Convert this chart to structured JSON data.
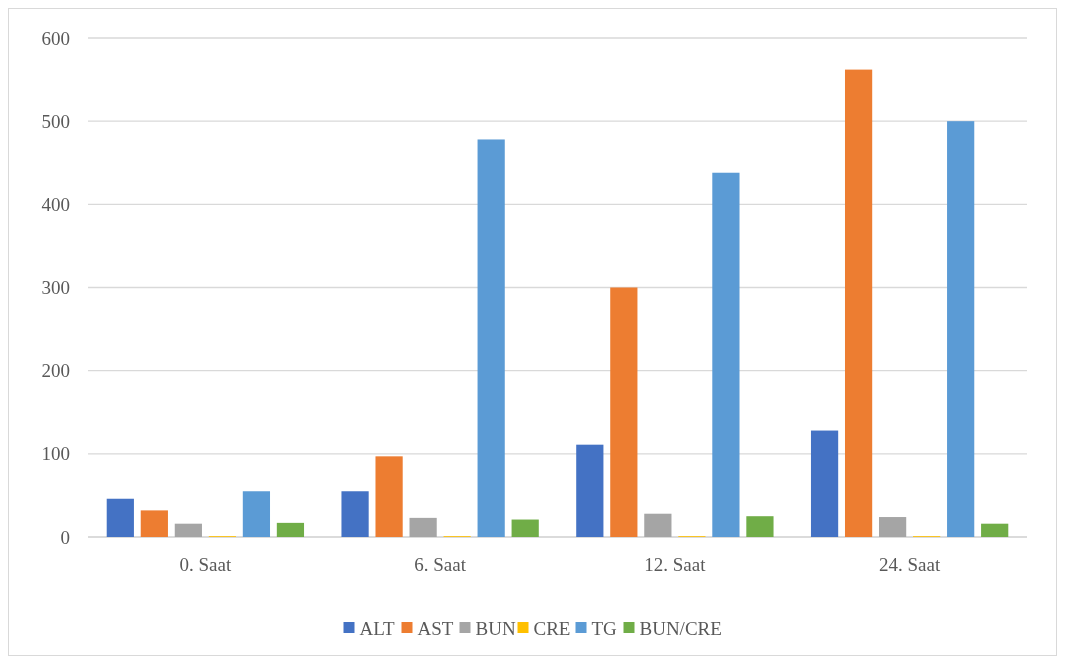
{
  "chart_data": {
    "type": "bar",
    "categories": [
      "0. Saat",
      "6. Saat",
      "12. Saat",
      "24. Saat"
    ],
    "series": [
      {
        "name": "ALT",
        "color": "#4472c4",
        "values": [
          46,
          55,
          111,
          128
        ]
      },
      {
        "name": "AST",
        "color": "#ed7d31",
        "values": [
          32,
          97,
          300,
          562
        ]
      },
      {
        "name": "BUN",
        "color": "#a5a5a5",
        "values": [
          16,
          23,
          28,
          24
        ]
      },
      {
        "name": "CRE",
        "color": "#ffc000",
        "values": [
          1,
          1,
          1,
          1
        ]
      },
      {
        "name": "TG",
        "color": "#5b9bd5",
        "values": [
          55,
          478,
          438,
          500
        ]
      },
      {
        "name": "BUN/CRE",
        "color": "#70ad47",
        "values": [
          17,
          21,
          25,
          16
        ]
      }
    ],
    "ylim": [
      0,
      600
    ],
    "yticks": [
      0,
      100,
      200,
      300,
      400,
      500,
      600
    ],
    "grid": "y",
    "legend": "bottom"
  }
}
